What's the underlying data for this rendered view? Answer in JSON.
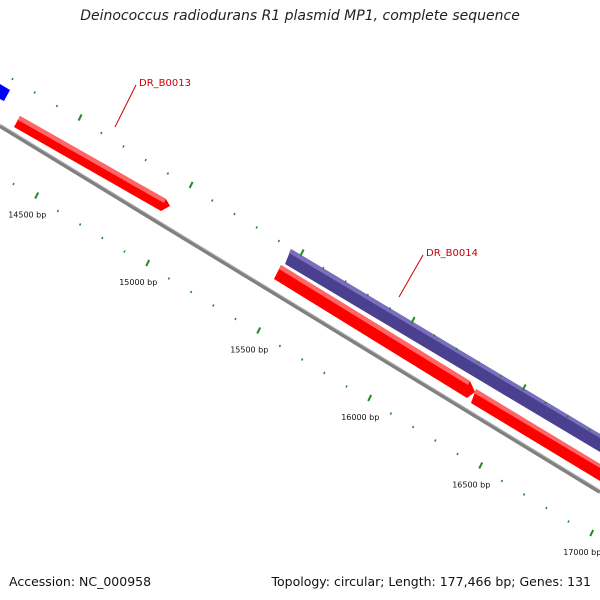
{
  "title": "Deinococcus radiodurans R1 plasmid MP1, complete sequence",
  "footer": {
    "accession": "Accession: NC_000958",
    "summary": "Topology: circular; Length: 177,466 bp; Genes: 131"
  },
  "scale": {
    "major_tick_bp": [
      14500,
      15000,
      15500,
      16000,
      16500,
      17000
    ],
    "labels": [
      "14500 bp",
      "15000 bp",
      "15500 bp",
      "16000 bp",
      "16500 bp",
      "17000 bp"
    ],
    "major_tick_color": "#228b22",
    "minor_tick_color": "#228b22"
  },
  "backbone_color": "#808080",
  "genes": [
    {
      "name": "DR_B0013",
      "strand": "forward",
      "color": "#ff0000",
      "label": "DR_B0013",
      "label_color": "#cc0000"
    },
    {
      "name": "DR_B0014",
      "strand": "forward",
      "color": "#ff0000",
      "label": "DR_B0014",
      "label_color": "#cc0000"
    },
    {
      "name": "",
      "strand": "reverse",
      "color": "#0000ff",
      "label": ""
    },
    {
      "name": "",
      "strand": "reverse-outer",
      "color": "#4b3f8f",
      "label": ""
    }
  ]
}
